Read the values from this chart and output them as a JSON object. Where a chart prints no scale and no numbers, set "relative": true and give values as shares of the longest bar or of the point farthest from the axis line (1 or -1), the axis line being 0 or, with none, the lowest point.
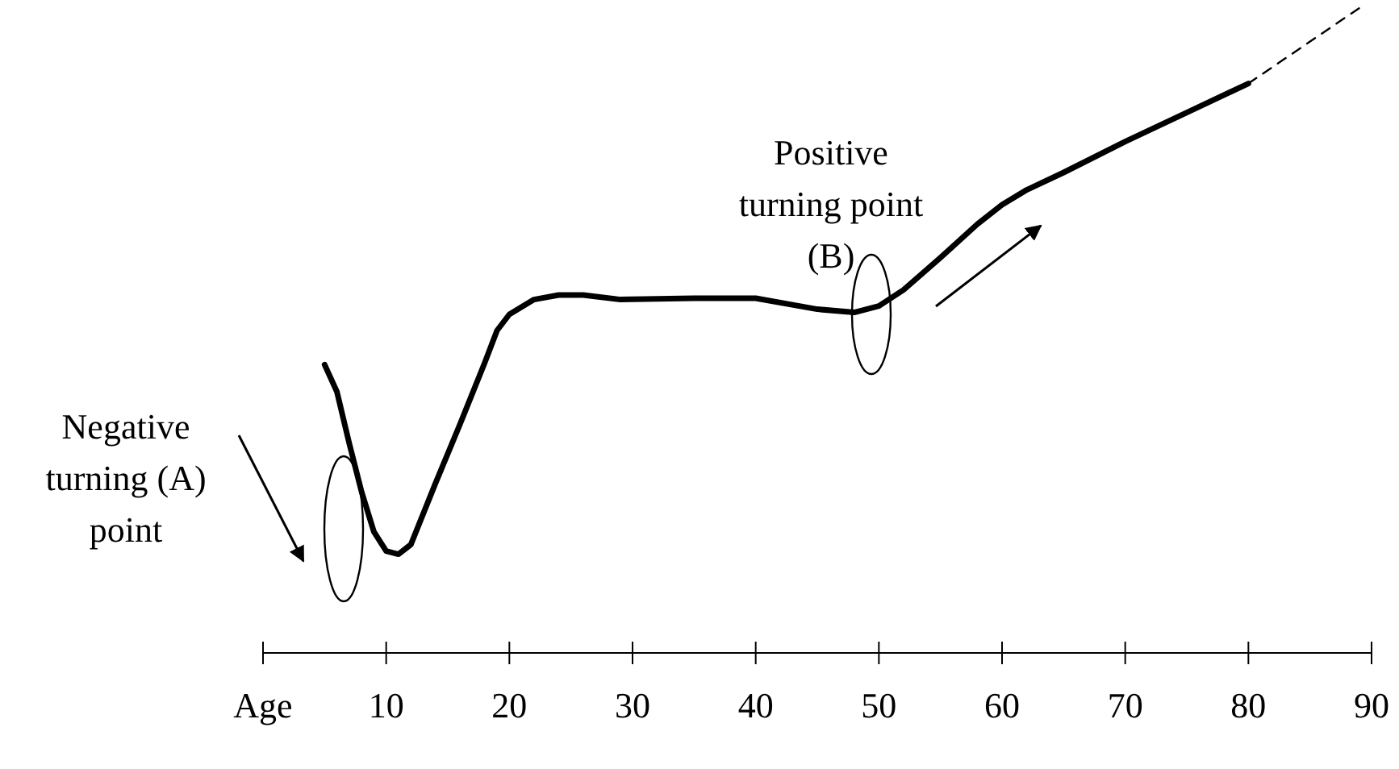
{
  "chart_data": {
    "type": "line",
    "relative": true,
    "xlim": [
      0,
      90
    ],
    "xticks": [
      {
        "value": 0,
        "label": "Age"
      },
      10,
      20,
      30,
      40,
      50,
      60,
      70,
      80,
      90
    ],
    "series": [
      {
        "color": "#000000",
        "line_style": "solid",
        "x": [
          5,
          6,
          7,
          8,
          9,
          10,
          11,
          12,
          14,
          16,
          18,
          19,
          20,
          22,
          24,
          26,
          29,
          35,
          40,
          45,
          48,
          50,
          52,
          55,
          58,
          60,
          62,
          65,
          70,
          75,
          80
        ],
        "values": [
          0.447,
          0.405,
          0.325,
          0.25,
          0.188,
          0.158,
          0.153,
          0.168,
          0.263,
          0.355,
          0.45,
          0.5,
          0.525,
          0.548,
          0.555,
          0.555,
          0.548,
          0.55,
          0.55,
          0.533,
          0.528,
          0.538,
          0.563,
          0.613,
          0.665,
          0.695,
          0.718,
          0.745,
          0.793,
          0.838,
          0.883
        ]
      },
      {
        "color": "#000000",
        "line_style": "dashed",
        "x": [
          80,
          89
        ],
        "values": [
          0.883,
          1
        ]
      }
    ],
    "annotations": [
      "Negative\nturning (A)\npoint",
      "Positive\nturning point\n(B)"
    ]
  }
}
